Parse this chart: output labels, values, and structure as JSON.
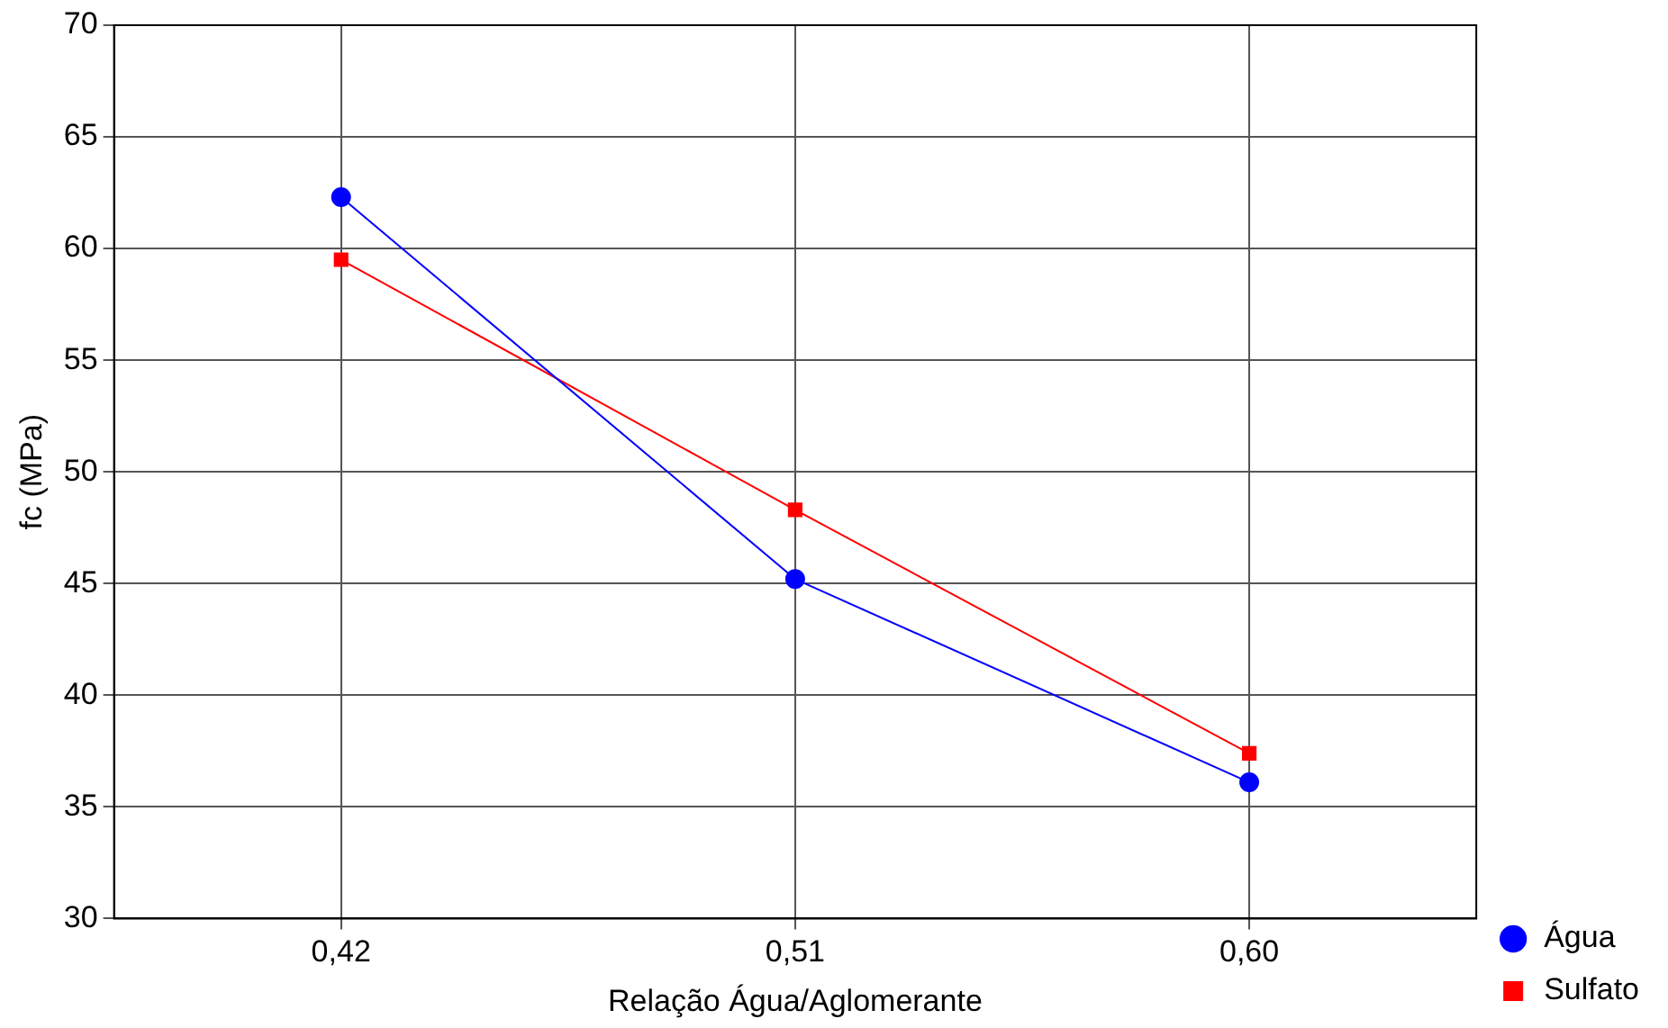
{
  "chart_data": {
    "type": "line",
    "xlabel": "Relação Água/Aglomerante",
    "ylabel": "fc (MPa)",
    "categories": [
      "0,42",
      "0,51",
      "0,60"
    ],
    "series": [
      {
        "name": "Água",
        "color": "#0000ff",
        "values": [
          62.3,
          45.2,
          36.1
        ],
        "marker": "circle"
      },
      {
        "name": "Sulfato",
        "color": "#ff0000",
        "values": [
          59.5,
          48.3,
          37.4
        ],
        "marker": "square"
      }
    ],
    "ylim": [
      30,
      70
    ],
    "yticks": [
      30,
      35,
      40,
      45,
      50,
      55,
      60,
      65,
      70
    ],
    "grid": true,
    "legend": "bottom right",
    "line_style": "solid"
  }
}
